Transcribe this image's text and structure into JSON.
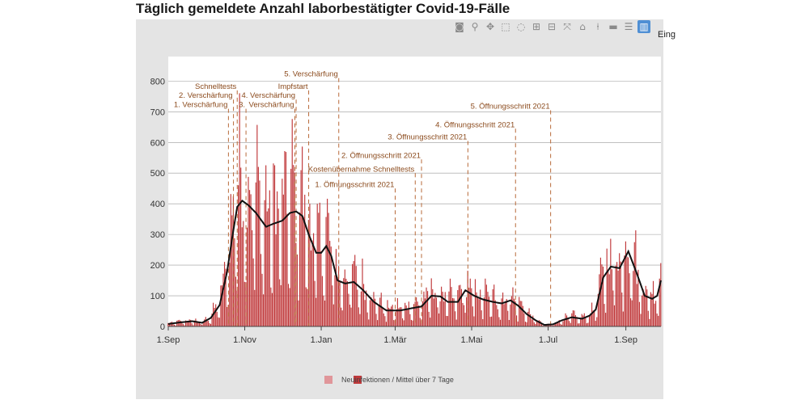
{
  "title": "Täglich gemeldete Anzahl laborbestätigter Covid-19-Fälle",
  "modebar": {
    "buttons": [
      {
        "name": "camera-icon",
        "glyph": "◙"
      },
      {
        "name": "zoom-icon",
        "glyph": "⚲"
      },
      {
        "name": "pan-icon",
        "glyph": "✥"
      },
      {
        "name": "box-select-icon",
        "glyph": "⬚"
      },
      {
        "name": "lasso-select-icon",
        "glyph": "◌"
      },
      {
        "name": "zoom-in-icon",
        "glyph": "⊞"
      },
      {
        "name": "zoom-out-icon",
        "glyph": "⊟"
      },
      {
        "name": "autoscale-icon",
        "glyph": "⤧"
      },
      {
        "name": "reset-axes-icon",
        "glyph": "⌂"
      },
      {
        "name": "spike-lines-icon",
        "glyph": "⍿"
      },
      {
        "name": "hover-closest-icon",
        "glyph": "▬"
      },
      {
        "name": "hover-compare-icon",
        "glyph": "☰"
      },
      {
        "name": "plotly-logo-icon",
        "glyph": "▥"
      }
    ],
    "overflow_label": "Eing"
  },
  "chart_data": {
    "type": "bar",
    "colors": {
      "bars": "#c0393b",
      "line": "#111111",
      "annotation": "#b86a3a",
      "legend_bar_light": "#e0969a",
      "legend_bar_dark": "#c0393b"
    },
    "x_start": "2020-09-01",
    "x_end": "2021-09-29",
    "ylim": [
      0,
      880
    ],
    "yticks": [
      0,
      100,
      200,
      300,
      400,
      500,
      600,
      700,
      800
    ],
    "xticks": [
      {
        "date": "2020-09-01",
        "label": "1.Sep"
      },
      {
        "date": "2020-11-01",
        "label": "1.Nov"
      },
      {
        "date": "2021-01-01",
        "label": "1.Jan"
      },
      {
        "date": "2021-03-01",
        "label": "1.Mär"
      },
      {
        "date": "2021-05-01",
        "label": "1.Mai"
      },
      {
        "date": "2021-07-01",
        "label": "1.Jul"
      },
      {
        "date": "2021-09-01",
        "label": "1.Sep"
      }
    ],
    "grid": true,
    "series": [
      {
        "name": "Neuinfektionen",
        "kind": "bar"
      },
      {
        "name": "7-Tage-Mittel",
        "kind": "line"
      }
    ],
    "legend_text": "Neuinfektionen / Mittel über 7 Tage",
    "annotations": [
      {
        "date": "2020-10-19",
        "label": "1. Verschärfung",
        "y": 715
      },
      {
        "date": "2020-10-23",
        "label": "2. Verschärfung",
        "y": 745
      },
      {
        "date": "2020-10-26",
        "label": "Schnelltests",
        "y": 775
      },
      {
        "date": "2020-11-02",
        "label": "3.",
        "y": 715
      },
      {
        "date": "2020-12-12",
        "label": "4. Verschärfung",
        "y": 745
      },
      {
        "date": "2020-12-11",
        "label": "Verschärfung",
        "y": 715
      },
      {
        "date": "2020-12-22",
        "label": "Impfstart",
        "y": 775
      },
      {
        "date": "2021-01-15",
        "label": "5. Verschärfung",
        "y": 815
      },
      {
        "date": "2021-03-01",
        "label": "1. Öffnungsschritt 2021",
        "y": 455
      },
      {
        "date": "2021-03-17",
        "label": "Kostenübernahme Schnelltests",
        "y": 505
      },
      {
        "date": "2021-03-22",
        "label": "2. Öffnungsschritt 2021",
        "y": 550
      },
      {
        "date": "2021-04-28",
        "label": "3. Öffnungsschritt 2021",
        "y": 610
      },
      {
        "date": "2021-06-05",
        "label": "4. Öffnungsschritt 2021",
        "y": 650
      },
      {
        "date": "2021-07-03",
        "label": "5. Öffnungsschritt 2021",
        "y": 710
      }
    ],
    "smoothed_7day_avg": [
      [
        "2020-09-01",
        8
      ],
      [
        "2020-09-10",
        13
      ],
      [
        "2020-09-20",
        17
      ],
      [
        "2020-09-28",
        12
      ],
      [
        "2020-10-05",
        28
      ],
      [
        "2020-10-12",
        70
      ],
      [
        "2020-10-18",
        180
      ],
      [
        "2020-10-22",
        290
      ],
      [
        "2020-10-26",
        390
      ],
      [
        "2020-10-30",
        410
      ],
      [
        "2020-11-04",
        395
      ],
      [
        "2020-11-10",
        370
      ],
      [
        "2020-11-18",
        325
      ],
      [
        "2020-11-24",
        335
      ],
      [
        "2020-12-01",
        345
      ],
      [
        "2020-12-07",
        370
      ],
      [
        "2020-12-12",
        375
      ],
      [
        "2020-12-17",
        360
      ],
      [
        "2020-12-22",
        300
      ],
      [
        "2020-12-28",
        240
      ],
      [
        "2021-01-01",
        240
      ],
      [
        "2021-01-05",
        262
      ],
      [
        "2021-01-09",
        230
      ],
      [
        "2021-01-14",
        150
      ],
      [
        "2021-01-20",
        140
      ],
      [
        "2021-01-27",
        145
      ],
      [
        "2021-02-03",
        120
      ],
      [
        "2021-02-12",
        80
      ],
      [
        "2021-02-22",
        52
      ],
      [
        "2021-03-05",
        52
      ],
      [
        "2021-03-15",
        60
      ],
      [
        "2021-03-22",
        65
      ],
      [
        "2021-03-30",
        100
      ],
      [
        "2021-04-06",
        98
      ],
      [
        "2021-04-12",
        80
      ],
      [
        "2021-04-20",
        80
      ],
      [
        "2021-04-26",
        118
      ],
      [
        "2021-05-03",
        100
      ],
      [
        "2021-05-10",
        88
      ],
      [
        "2021-05-18",
        80
      ],
      [
        "2021-05-25",
        75
      ],
      [
        "2021-06-01",
        85
      ],
      [
        "2021-06-07",
        68
      ],
      [
        "2021-06-14",
        40
      ],
      [
        "2021-06-21",
        20
      ],
      [
        "2021-06-28",
        5
      ],
      [
        "2021-07-05",
        7
      ],
      [
        "2021-07-12",
        20
      ],
      [
        "2021-07-20",
        30
      ],
      [
        "2021-07-28",
        25
      ],
      [
        "2021-08-03",
        35
      ],
      [
        "2021-08-08",
        55
      ],
      [
        "2021-08-14",
        160
      ],
      [
        "2021-08-20",
        195
      ],
      [
        "2021-08-27",
        190
      ],
      [
        "2021-09-03",
        245
      ],
      [
        "2021-09-10",
        170
      ],
      [
        "2021-09-16",
        100
      ],
      [
        "2021-09-22",
        90
      ],
      [
        "2021-09-26",
        100
      ],
      [
        "2021-09-29",
        150
      ]
    ]
  }
}
